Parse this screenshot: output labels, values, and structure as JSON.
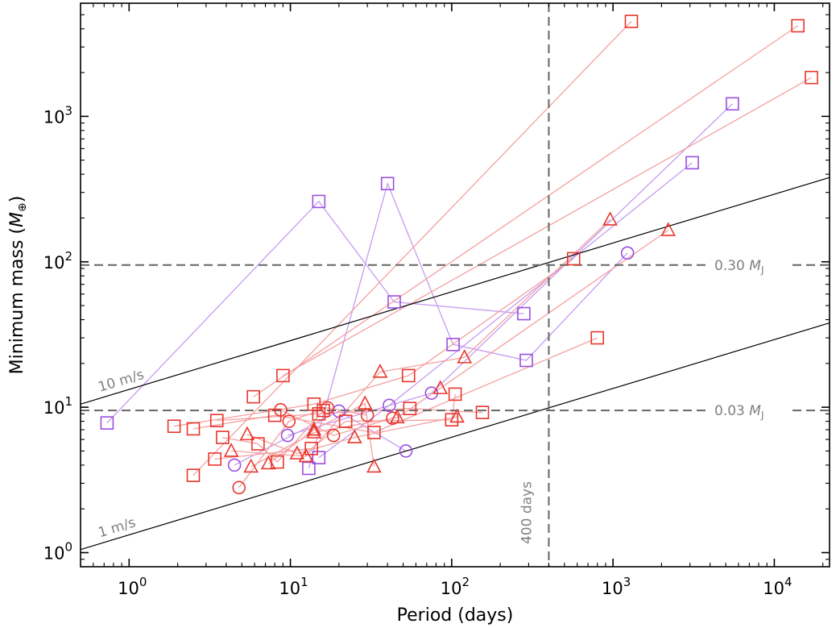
{
  "chart_data": {
    "type": "scatter",
    "xlabel": "Period (days)",
    "ylabel": "Minimum mass (",
    "ylabel_sym": "M",
    "ylabel_sub": "⊕",
    "ylabel_end": ")",
    "x_scale": "log",
    "y_scale": "log",
    "xlim": [
      0.5,
      22000
    ],
    "ylim": [
      0.8,
      6000
    ],
    "x_ticks": [
      {
        "value": 1,
        "base": "10",
        "exp": "0"
      },
      {
        "value": 10,
        "base": "10",
        "exp": "1"
      },
      {
        "value": 100,
        "base": "10",
        "exp": "2"
      },
      {
        "value": 1000,
        "base": "10",
        "exp": "3"
      },
      {
        "value": 10000,
        "base": "10",
        "exp": "4"
      }
    ],
    "y_ticks": [
      {
        "value": 1,
        "base": "10",
        "exp": "0"
      },
      {
        "value": 10,
        "base": "10",
        "exp": "1"
      },
      {
        "value": 100,
        "base": "10",
        "exp": "2"
      },
      {
        "value": 1000,
        "base": "10",
        "exp": "3"
      }
    ],
    "grid": false,
    "reference_lines": [
      {
        "kind": "horizontal",
        "value": 95,
        "label_num": "0.30",
        "label_sym": "M",
        "label_sub": "J"
      },
      {
        "kind": "horizontal",
        "value": 9.5,
        "label_num": "0.03",
        "label_sym": "M",
        "label_sub": "J"
      },
      {
        "kind": "vertical",
        "value": 400,
        "label": "400 days"
      }
    ],
    "rv_lines": [
      {
        "label": "10 m/s",
        "p_start": 0.5,
        "m_start": 10.5,
        "p_end": 22000,
        "m_end": 380
      },
      {
        "label": "1 m/s",
        "p_start": 0.5,
        "m_start": 1.05,
        "p_end": 22000,
        "m_end": 38
      }
    ],
    "colors": {
      "red": "#e8362c",
      "red_line": "#f5a0a0",
      "purple": "#9b4fe0",
      "purple_line": "#c59cf0",
      "ref_line": "#666666",
      "rv_line": "#000000"
    },
    "systems": [
      {
        "color": "purple",
        "points": [
          {
            "period": 0.73,
            "mass": 7.8,
            "marker": "square"
          },
          {
            "period": 15,
            "mass": 260,
            "marker": "square"
          },
          {
            "period": 44,
            "mass": 53,
            "marker": "square"
          },
          {
            "period": 280,
            "mass": 44,
            "marker": "square"
          }
        ]
      },
      {
        "color": "purple",
        "points": [
          {
            "period": 13,
            "mass": 3.8,
            "marker": "square"
          },
          {
            "period": 40,
            "mass": 345,
            "marker": "square"
          },
          {
            "period": 102,
            "mass": 27,
            "marker": "square"
          },
          {
            "period": 290,
            "mass": 21,
            "marker": "square"
          },
          {
            "period": 1230,
            "mass": 115,
            "marker": "circle"
          }
        ]
      },
      {
        "color": "purple",
        "points": [
          {
            "period": 15,
            "mass": 4.5,
            "marker": "square"
          },
          {
            "period": 41,
            "mass": 10.3,
            "marker": "circle"
          },
          {
            "period": 3100,
            "mass": 480,
            "marker": "square"
          }
        ]
      },
      {
        "color": "purple",
        "points": [
          {
            "period": 9.6,
            "mass": 6.4,
            "marker": "circle"
          },
          {
            "period": 75,
            "mass": 12.5,
            "marker": "circle"
          },
          {
            "period": 5500,
            "mass": 1220,
            "marker": "square"
          }
        ]
      },
      {
        "color": "purple",
        "points": [
          {
            "period": 4.5,
            "mass": 4.0,
            "marker": "circle"
          },
          {
            "period": 20,
            "mass": 9.4,
            "marker": "circle"
          },
          {
            "period": 52,
            "mass": 5.0,
            "marker": "circle"
          }
        ]
      },
      {
        "color": "red",
        "points": [
          {
            "period": 2.5,
            "mass": 3.4,
            "marker": "square"
          },
          {
            "period": 1300,
            "mass": 4500,
            "marker": "square"
          }
        ]
      },
      {
        "color": "red",
        "points": [
          {
            "period": 5.9,
            "mass": 11.8,
            "marker": "square"
          },
          {
            "period": 14000,
            "mass": 4200,
            "marker": "square"
          }
        ]
      },
      {
        "color": "red",
        "points": [
          {
            "period": 9,
            "mass": 16.5,
            "marker": "square"
          },
          {
            "period": 17000,
            "mass": 1850,
            "marker": "square"
          }
        ]
      },
      {
        "color": "red",
        "points": [
          {
            "period": 1.9,
            "mass": 7.4,
            "marker": "square"
          },
          {
            "period": 14,
            "mass": 10.5,
            "marker": "square"
          },
          {
            "period": 54,
            "mass": 16.5,
            "marker": "square"
          },
          {
            "period": 570,
            "mass": 105,
            "marker": "square"
          }
        ]
      },
      {
        "color": "red",
        "points": [
          {
            "period": 2.5,
            "mass": 7.1,
            "marker": "square"
          },
          {
            "period": 8,
            "mass": 8.8,
            "marker": "square"
          },
          {
            "period": 33,
            "mass": 6.7,
            "marker": "square"
          },
          {
            "period": 800,
            "mass": 30,
            "marker": "square"
          }
        ]
      },
      {
        "color": "red",
        "points": [
          {
            "period": 3.5,
            "mass": 8.1,
            "marker": "square"
          },
          {
            "period": 15,
            "mass": 9.0,
            "marker": "square"
          },
          {
            "period": 55,
            "mass": 9.8,
            "marker": "square"
          },
          {
            "period": 155,
            "mass": 9.2,
            "marker": "square"
          }
        ]
      },
      {
        "color": "red",
        "points": [
          {
            "period": 3.4,
            "mass": 4.4,
            "marker": "square"
          },
          {
            "period": 13.5,
            "mass": 5.2,
            "marker": "square"
          },
          {
            "period": 22,
            "mass": 8.0,
            "marker": "square"
          },
          {
            "period": 100,
            "mass": 8.2,
            "marker": "square"
          },
          {
            "period": 105,
            "mass": 12.3,
            "marker": "square"
          }
        ]
      },
      {
        "color": "red",
        "points": [
          {
            "period": 3.8,
            "mass": 6.2,
            "marker": "square"
          },
          {
            "period": 6.3,
            "mass": 5.6,
            "marker": "square"
          },
          {
            "period": 8.3,
            "mass": 4.2,
            "marker": "square"
          },
          {
            "period": 16,
            "mass": 9.5,
            "marker": "square"
          }
        ]
      },
      {
        "color": "red",
        "points": [
          {
            "period": 4.3,
            "mass": 5.0,
            "marker": "triangle"
          },
          {
            "period": 12.5,
            "mass": 4.6,
            "marker": "triangle"
          },
          {
            "period": 36,
            "mass": 17.5,
            "marker": "triangle"
          },
          {
            "period": 120,
            "mass": 22,
            "marker": "triangle"
          },
          {
            "period": 960,
            "mass": 195,
            "marker": "triangle"
          }
        ]
      },
      {
        "color": "red",
        "points": [
          {
            "period": 5.7,
            "mass": 3.9,
            "marker": "triangle"
          },
          {
            "period": 14,
            "mass": 6.7,
            "marker": "triangle"
          },
          {
            "period": 46,
            "mass": 8.5,
            "marker": "triangle"
          },
          {
            "period": 85,
            "mass": 13.5,
            "marker": "triangle"
          },
          {
            "period": 2200,
            "mass": 165,
            "marker": "triangle"
          }
        ]
      },
      {
        "color": "red",
        "points": [
          {
            "period": 5.4,
            "mass": 6.5,
            "marker": "triangle"
          },
          {
            "period": 11,
            "mass": 4.8,
            "marker": "triangle"
          },
          {
            "period": 25,
            "mass": 6.2,
            "marker": "triangle"
          },
          {
            "period": 108,
            "mass": 8.6,
            "marker": "triangle"
          }
        ]
      },
      {
        "color": "red",
        "points": [
          {
            "period": 7.3,
            "mass": 4.1,
            "marker": "triangle"
          },
          {
            "period": 14,
            "mass": 7.0,
            "marker": "triangle"
          },
          {
            "period": 29,
            "mass": 10.6,
            "marker": "triangle"
          },
          {
            "period": 33,
            "mass": 3.9,
            "marker": "triangle"
          }
        ]
      },
      {
        "color": "red",
        "points": [
          {
            "period": 4.8,
            "mass": 2.8,
            "marker": "circle"
          },
          {
            "period": 9.8,
            "mass": 8.0,
            "marker": "circle"
          },
          {
            "period": 17,
            "mass": 9.9,
            "marker": "circle"
          },
          {
            "period": 30,
            "mass": 8.8,
            "marker": "circle"
          }
        ]
      },
      {
        "color": "red",
        "points": [
          {
            "period": 8.7,
            "mass": 9.6,
            "marker": "circle"
          },
          {
            "period": 18.5,
            "mass": 6.4,
            "marker": "circle"
          },
          {
            "period": 43,
            "mass": 8.4,
            "marker": "circle"
          }
        ]
      }
    ]
  }
}
